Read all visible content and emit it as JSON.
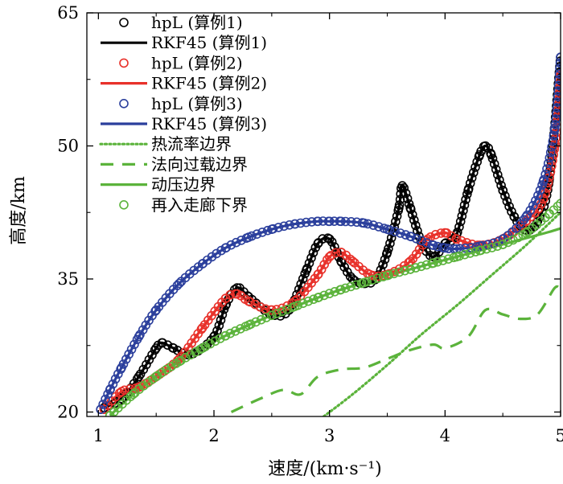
{
  "chart_data": {
    "type": "line",
    "title": "",
    "xlabel": "速度/(km·s⁻¹)",
    "ylabel": "高度/km",
    "xlim": [
      0.9,
      5.0
    ],
    "ylim": [
      19.5,
      65
    ],
    "xticks": [
      1,
      2,
      3,
      4,
      5
    ],
    "yticks": [
      20,
      35,
      50,
      65
    ],
    "legend_position": "top-left",
    "series": [
      {
        "name": "hpL (算例1)",
        "style": "markers",
        "color": "#000000",
        "x": [
          1.05,
          1.2,
          1.35,
          1.5,
          1.55,
          1.65,
          1.8,
          2.0,
          2.1,
          2.2,
          2.3,
          2.5,
          2.65,
          2.8,
          2.9,
          3.0,
          3.1,
          3.2,
          3.3,
          3.4,
          3.5,
          3.6,
          3.63,
          3.7,
          3.8,
          3.9,
          4.0,
          4.1,
          4.2,
          4.3,
          4.35,
          4.4,
          4.5,
          4.6,
          4.7,
          4.8,
          4.9,
          5.0
        ],
        "y": [
          20.5,
          21.5,
          24,
          27.2,
          27.8,
          27.2,
          26.5,
          28.5,
          32,
          34,
          33,
          31,
          31.5,
          36,
          39,
          39.5,
          37,
          35,
          34.5,
          35,
          38,
          43,
          45.5,
          43,
          39,
          37.5,
          39,
          40,
          45,
          49,
          50,
          49,
          45,
          42,
          40.5,
          41.5,
          46,
          60
        ]
      },
      {
        "name": "RKF45 (算例1)",
        "style": "solid",
        "color": "#000000",
        "x": [
          1.05,
          1.2,
          1.35,
          1.5,
          1.55,
          1.65,
          1.8,
          2.0,
          2.1,
          2.2,
          2.3,
          2.5,
          2.65,
          2.8,
          2.9,
          3.0,
          3.1,
          3.2,
          3.3,
          3.4,
          3.5,
          3.6,
          3.63,
          3.7,
          3.8,
          3.9,
          4.0,
          4.1,
          4.2,
          4.3,
          4.35,
          4.4,
          4.5,
          4.6,
          4.7,
          4.8,
          4.9,
          5.0
        ],
        "y": [
          20.5,
          21.5,
          24,
          27.2,
          27.8,
          27.2,
          26.5,
          28.5,
          32,
          34,
          33,
          31,
          31.5,
          36,
          39,
          39.5,
          37,
          35,
          34.5,
          35,
          38,
          43,
          45.5,
          43,
          39,
          37.5,
          39,
          40,
          45,
          49,
          50,
          49,
          45,
          42,
          40.5,
          41.5,
          46,
          60
        ]
      },
      {
        "name": "hpL (算例2)",
        "style": "markers",
        "color": "#e8312a",
        "x": [
          1.05,
          1.2,
          1.35,
          1.5,
          1.7,
          1.9,
          2.1,
          2.2,
          2.3,
          2.5,
          2.7,
          2.9,
          3.0,
          3.1,
          3.2,
          3.35,
          3.5,
          3.7,
          3.85,
          4.0,
          4.1,
          4.3,
          4.5,
          4.7,
          4.85,
          4.95,
          5.0
        ],
        "y": [
          20.3,
          22.3,
          22.8,
          24,
          26,
          29.5,
          32.8,
          33.3,
          32.5,
          31.5,
          32.5,
          35.5,
          37.5,
          38,
          37,
          35.5,
          35.5,
          37,
          39.5,
          40.2,
          39.5,
          38.8,
          39.5,
          41.5,
          44,
          50,
          58
        ]
      },
      {
        "name": "RKF45 (算例2)",
        "style": "solid",
        "color": "#e8312a",
        "x": [
          1.05,
          1.2,
          1.35,
          1.5,
          1.7,
          1.9,
          2.1,
          2.2,
          2.3,
          2.5,
          2.7,
          2.9,
          3.0,
          3.1,
          3.2,
          3.35,
          3.5,
          3.7,
          3.85,
          4.0,
          4.1,
          4.3,
          4.5,
          4.7,
          4.85,
          4.95,
          5.0
        ],
        "y": [
          20.3,
          22.3,
          22.8,
          24,
          26,
          29.5,
          32.8,
          33.3,
          32.5,
          31.5,
          32.5,
          35.5,
          37.5,
          38,
          37,
          35.5,
          35.5,
          37,
          39.5,
          40.2,
          39.5,
          38.8,
          39.5,
          41.5,
          44,
          50,
          58
        ]
      },
      {
        "name": "hpL (算例3)",
        "style": "markers",
        "color": "#2b3f9c",
        "x": [
          1.02,
          1.1,
          1.2,
          1.35,
          1.5,
          1.7,
          1.9,
          2.1,
          2.3,
          2.5,
          2.7,
          2.9,
          3.0,
          3.1,
          3.3,
          3.5,
          3.7,
          3.9,
          4.0,
          4.1,
          4.3,
          4.5,
          4.7,
          4.85,
          4.95,
          5.0
        ],
        "y": [
          20.3,
          22.5,
          25,
          28.5,
          31.5,
          34.5,
          36.7,
          38.5,
          39.7,
          40.6,
          41.2,
          41.5,
          41.5,
          41.5,
          41.3,
          40.6,
          39.8,
          38.8,
          38.5,
          38.4,
          38.7,
          39.5,
          42,
          46,
          52,
          60
        ]
      },
      {
        "name": "RKF45 (算例3)",
        "style": "solid",
        "color": "#2b3f9c",
        "x": [
          1.02,
          1.1,
          1.2,
          1.35,
          1.5,
          1.7,
          1.9,
          2.1,
          2.3,
          2.5,
          2.7,
          2.9,
          3.0,
          3.1,
          3.3,
          3.5,
          3.7,
          3.9,
          4.0,
          4.1,
          4.3,
          4.5,
          4.7,
          4.85,
          4.95,
          5.0
        ],
        "y": [
          20.3,
          22.5,
          25,
          28.5,
          31.5,
          34.5,
          36.7,
          38.5,
          39.7,
          40.6,
          41.2,
          41.5,
          41.5,
          41.5,
          41.3,
          40.6,
          39.8,
          38.8,
          38.5,
          38.4,
          38.7,
          39.5,
          42,
          46,
          52,
          60
        ]
      },
      {
        "name": "热流率边界",
        "style": "dotted",
        "color": "#5bb33b",
        "x": [
          2.95,
          3.2,
          3.5,
          3.8,
          4.1,
          4.4,
          4.7,
          5.0
        ],
        "y": [
          19.5,
          22,
          25.3,
          28.8,
          32,
          35.4,
          38.8,
          42.5
        ]
      },
      {
        "name": "法向过载边界",
        "style": "dashed",
        "color": "#5bb33b",
        "x": [
          2.15,
          2.4,
          2.6,
          2.75,
          2.9,
          3.1,
          3.3,
          3.5,
          3.7,
          3.9,
          4.0,
          4.2,
          4.35,
          4.5,
          4.65,
          4.8,
          4.95,
          5.0
        ],
        "y": [
          20,
          21.5,
          22.5,
          22,
          24,
          24.8,
          25,
          26,
          27,
          27.6,
          27.2,
          28.5,
          31.5,
          31,
          30.5,
          31,
          34,
          33.7
        ]
      },
      {
        "name": "动压边界",
        "style": "solid",
        "color": "#5bb33b",
        "x": [
          1.1,
          1.3,
          1.5,
          1.7,
          1.9,
          2.1,
          2.3,
          2.5,
          2.7,
          2.9,
          3.1,
          3.3,
          3.5,
          3.7,
          3.9,
          4.1,
          4.3,
          4.5,
          4.7,
          4.9,
          5.0
        ],
        "y": [
          19.6,
          22,
          24,
          25.7,
          27.2,
          28.6,
          29.8,
          30.9,
          31.9,
          32.9,
          33.8,
          34.6,
          35.4,
          36.1,
          36.8,
          37.5,
          38.2,
          38.9,
          39.6,
          40.3,
          40.7
        ]
      },
      {
        "name": "再入走廊下界",
        "style": "markers",
        "color": "#5bb33b",
        "x": [
          1.1,
          1.3,
          1.5,
          1.7,
          1.9,
          2.1,
          2.3,
          2.5,
          2.7,
          2.9,
          3.1,
          3.3,
          3.5,
          3.7,
          3.9,
          4.1,
          4.3,
          4.5,
          4.7,
          4.9,
          5.0
        ],
        "y": [
          19.6,
          22,
          24,
          25.7,
          27.2,
          28.6,
          29.8,
          30.9,
          31.9,
          32.9,
          33.8,
          34.6,
          35.4,
          36.1,
          36.8,
          37.5,
          38.2,
          38.9,
          40.2,
          42.3,
          43.5
        ]
      }
    ],
    "colors": {
      "black": "#000000",
      "red": "#e8312a",
      "blue": "#2b3f9c",
      "green": "#5bb33b"
    }
  }
}
